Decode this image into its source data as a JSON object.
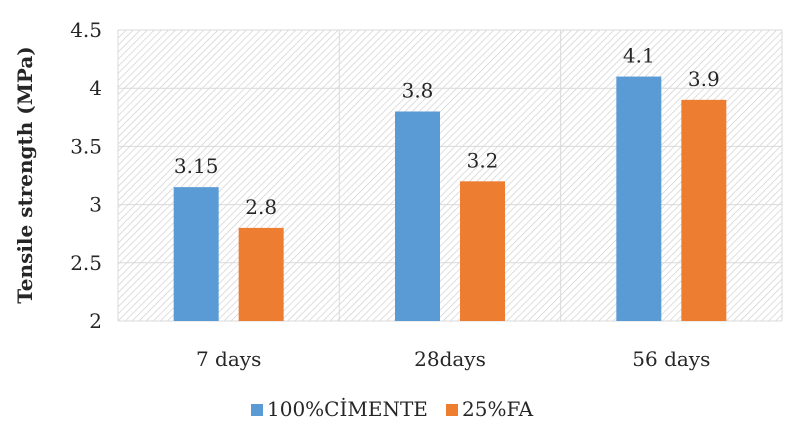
{
  "chart_data": {
    "type": "bar",
    "title": "",
    "xlabel": "",
    "ylabel": "Tensile strength (MPa)",
    "ylim": [
      2,
      4.5
    ],
    "yticks": [
      "2",
      "2.5",
      "3",
      "3.5",
      "4",
      "4.5"
    ],
    "categories": [
      "7 days",
      "28days",
      "56 days"
    ],
    "series": [
      {
        "name": "100%CİMENTE",
        "color": "#5B9BD5",
        "values": [
          3.15,
          3.8,
          4.1
        ],
        "labels": [
          "3.15",
          "3.8",
          "4.1"
        ]
      },
      {
        "name": "25%FA",
        "color": "#ED7D31",
        "values": [
          2.8,
          3.2,
          3.9
        ],
        "labels": [
          "2.8",
          "3.2",
          "3.9"
        ]
      }
    ],
    "grid": true,
    "background_pattern": "diagonal hatch",
    "legend_position": "bottom"
  }
}
